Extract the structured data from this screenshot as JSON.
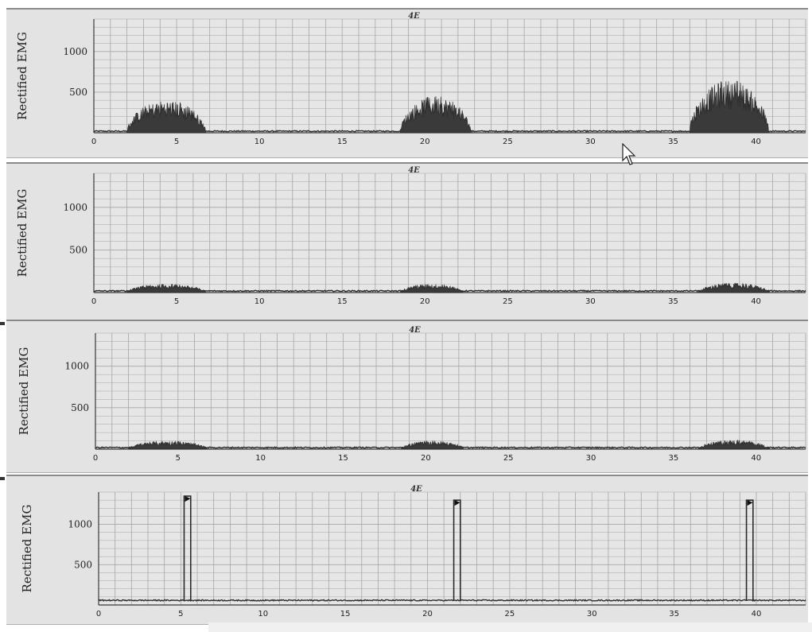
{
  "chart_data": [
    {
      "type": "area",
      "header": "4E",
      "ylabel": "Rectified EMG",
      "y_ticks": [
        500,
        1000
      ],
      "x_ticks": [
        0,
        5,
        10,
        15,
        20,
        25,
        30,
        35,
        40
      ],
      "xlim": [
        0,
        43
      ],
      "ylim": [
        0,
        1400
      ],
      "grid": true,
      "bursts": [
        {
          "start": 2.0,
          "end": 7.0,
          "peak": 400
        },
        {
          "start": 18.5,
          "end": 23.0,
          "peak": 450
        },
        {
          "start": 36.0,
          "end": 41.0,
          "peak": 650
        }
      ]
    },
    {
      "type": "area",
      "header": "4E",
      "ylabel": "Rectified EMG",
      "y_ticks": [
        500,
        1000
      ],
      "x_ticks": [
        0,
        5,
        10,
        15,
        20,
        25,
        30,
        35,
        40
      ],
      "xlim": [
        0,
        43
      ],
      "ylim": [
        0,
        1400
      ],
      "grid": true,
      "bursts": [
        {
          "start": 2.0,
          "end": 7.0,
          "peak": 100
        },
        {
          "start": 18.5,
          "end": 22.5,
          "peak": 100
        },
        {
          "start": 36.5,
          "end": 41.0,
          "peak": 110
        }
      ]
    },
    {
      "type": "area",
      "header": "4E",
      "ylabel": "Rectified EMG",
      "y_ticks": [
        500,
        1000
      ],
      "x_ticks": [
        0,
        5,
        10,
        15,
        20,
        25,
        30,
        35,
        40
      ],
      "xlim": [
        0,
        43
      ],
      "ylim": [
        0,
        1400
      ],
      "grid": true,
      "bursts": [
        {
          "start": 2.0,
          "end": 7.0,
          "peak": 100
        },
        {
          "start": 18.5,
          "end": 22.5,
          "peak": 100
        },
        {
          "start": 36.5,
          "end": 41.0,
          "peak": 110
        }
      ]
    },
    {
      "type": "line",
      "header": "4E",
      "ylabel": "Rectified EMG",
      "y_ticks": [
        500,
        1000
      ],
      "x_ticks": [
        0,
        5,
        10,
        15,
        20,
        25,
        30,
        35,
        40
      ],
      "xlim": [
        0,
        43
      ],
      "ylim": [
        0,
        1400
      ],
      "grid": true,
      "baseline": 50,
      "pulses": [
        {
          "start": 5.2,
          "end": 5.6,
          "value": 1350
        },
        {
          "start": 21.6,
          "end": 22.0,
          "value": 1300
        },
        {
          "start": 39.4,
          "end": 39.8,
          "value": 1300
        }
      ]
    }
  ],
  "colors": {
    "panel_bg": "#e3e3e3",
    "grid": "#a6a6a6",
    "axis": "#3a3a3a",
    "signal": "#2b2b2b"
  },
  "icons": {
    "cursor": "arrow-cursor-icon"
  }
}
